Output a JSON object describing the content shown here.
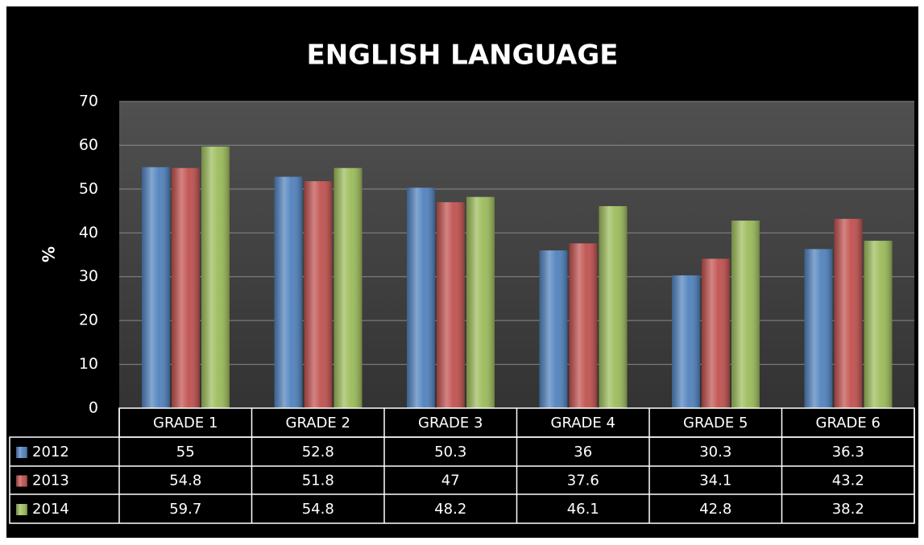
{
  "chart_data": {
    "type": "bar",
    "title": "ENGLISH LANGUAGE",
    "y_label": "%",
    "categories": [
      "GRADE 1",
      "GRADE 2",
      "GRADE 3",
      "GRADE 4",
      "GRADE 5",
      "GRADE 6"
    ],
    "series": [
      {
        "name": "2012",
        "color": "#4f81bd",
        "values": [
          55,
          52.8,
          50.3,
          36,
          30.3,
          36.3
        ]
      },
      {
        "name": "2013",
        "color": "#c0504d",
        "values": [
          54.8,
          51.8,
          47,
          37.6,
          34.1,
          43.2
        ]
      },
      {
        "name": "2014",
        "color": "#9bbb59",
        "values": [
          59.7,
          54.8,
          48.2,
          46.1,
          42.8,
          38.2
        ]
      }
    ],
    "ylim": [
      0,
      70
    ],
    "yticks": [
      0,
      10,
      20,
      30,
      40,
      50,
      60,
      70
    ],
    "grid": true
  }
}
